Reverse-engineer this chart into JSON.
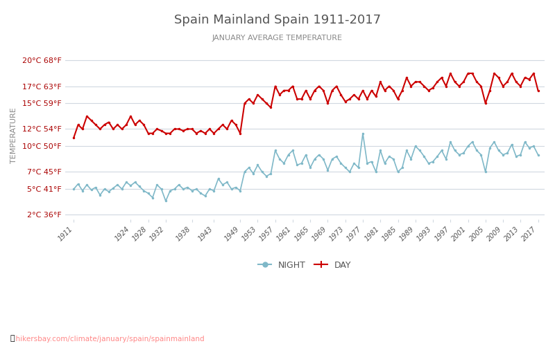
{
  "title": "Spain Mainland Spain 1911-2017",
  "subtitle": "JANUARY AVERAGE TEMPERATURE",
  "ylabel": "TEMPERATURE",
  "xlabel_url": "hikersbay.com/climate/january/spain/spainmainland",
  "years": [
    1911,
    1912,
    1913,
    1914,
    1915,
    1916,
    1917,
    1918,
    1919,
    1920,
    1921,
    1922,
    1923,
    1924,
    1925,
    1926,
    1927,
    1928,
    1929,
    1930,
    1931,
    1932,
    1933,
    1934,
    1935,
    1936,
    1937,
    1938,
    1939,
    1940,
    1941,
    1942,
    1943,
    1944,
    1945,
    1946,
    1947,
    1948,
    1949,
    1950,
    1951,
    1952,
    1953,
    1954,
    1955,
    1956,
    1957,
    1958,
    1959,
    1960,
    1961,
    1962,
    1963,
    1964,
    1965,
    1966,
    1967,
    1968,
    1969,
    1970,
    1971,
    1972,
    1973,
    1974,
    1975,
    1976,
    1977,
    1978,
    1979,
    1980,
    1981,
    1982,
    1983,
    1984,
    1985,
    1986,
    1987,
    1988,
    1989,
    1990,
    1991,
    1992,
    1993,
    1994,
    1995,
    1996,
    1997,
    1998,
    1999,
    2000,
    2001,
    2002,
    2003,
    2004,
    2005,
    2006,
    2007,
    2008,
    2009,
    2010,
    2011,
    2012,
    2013,
    2014,
    2015,
    2016,
    2017
  ],
  "night": [
    5.0,
    5.6,
    4.8,
    5.5,
    4.9,
    5.2,
    4.3,
    5.0,
    4.7,
    5.1,
    5.5,
    5.0,
    5.8,
    5.4,
    5.8,
    5.3,
    4.8,
    4.5,
    4.0,
    5.5,
    5.0,
    3.6,
    4.8,
    5.0,
    5.5,
    5.0,
    5.2,
    4.8,
    5.0,
    4.5,
    4.2,
    5.0,
    4.8,
    6.2,
    5.5,
    5.8,
    5.0,
    5.2,
    4.8,
    7.0,
    7.5,
    6.8,
    7.8,
    7.0,
    6.5,
    6.8,
    9.5,
    8.5,
    8.0,
    9.0,
    9.5,
    7.8,
    8.0,
    9.0,
    7.5,
    8.5,
    9.0,
    8.5,
    7.2,
    8.5,
    8.8,
    8.0,
    7.5,
    7.0,
    8.0,
    7.5,
    11.5,
    8.0,
    8.2,
    7.0,
    9.5,
    8.0,
    8.8,
    8.5,
    7.0,
    7.5,
    9.5,
    8.5,
    10.0,
    9.5,
    8.8,
    8.0,
    8.2,
    8.8,
    9.5,
    8.5,
    10.5,
    9.5,
    9.0,
    9.2,
    10.0,
    10.5,
    9.5,
    9.0,
    7.0,
    9.8,
    10.5,
    9.5,
    9.0,
    9.2,
    10.2,
    8.8,
    9.0,
    10.5,
    9.8,
    10.0,
    9.0
  ],
  "day": [
    11.0,
    12.5,
    12.0,
    13.5,
    13.0,
    12.5,
    12.0,
    12.5,
    12.8,
    12.0,
    12.5,
    12.0,
    12.5,
    13.5,
    12.5,
    13.0,
    12.5,
    11.5,
    11.5,
    12.0,
    11.8,
    11.5,
    11.5,
    12.0,
    12.0,
    11.8,
    12.0,
    12.0,
    11.5,
    11.8,
    11.5,
    12.0,
    11.5,
    12.0,
    12.5,
    12.0,
    13.0,
    12.5,
    11.5,
    15.0,
    15.5,
    15.0,
    16.0,
    15.5,
    15.0,
    14.5,
    17.0,
    16.0,
    16.5,
    16.5,
    17.0,
    15.5,
    15.5,
    16.5,
    15.5,
    16.5,
    17.0,
    16.5,
    15.0,
    16.5,
    17.0,
    16.0,
    15.2,
    15.5,
    16.0,
    15.5,
    16.5,
    15.5,
    16.5,
    15.8,
    17.5,
    16.5,
    17.0,
    16.5,
    15.5,
    16.5,
    18.0,
    17.0,
    17.5,
    17.5,
    17.0,
    16.5,
    16.8,
    17.5,
    18.0,
    17.0,
    18.5,
    17.5,
    17.0,
    17.5,
    18.5,
    18.5,
    17.5,
    17.0,
    15.0,
    16.5,
    18.5,
    18.0,
    17.0,
    17.5,
    18.5,
    17.5,
    17.0,
    18.0,
    17.8,
    18.5,
    16.5
  ],
  "yticks_c": [
    2,
    5,
    7,
    10,
    12,
    15,
    17,
    20
  ],
  "yticks_f": [
    36,
    41,
    45,
    50,
    54,
    59,
    63,
    68
  ],
  "xticks": [
    1911,
    1924,
    1928,
    1932,
    1938,
    1943,
    1949,
    1953,
    1957,
    1961,
    1965,
    1969,
    1973,
    1977,
    1981,
    1985,
    1989,
    1993,
    1997,
    2001,
    2005,
    2009,
    2013,
    2017
  ],
  "night_color": "#7fb8c8",
  "day_color": "#cc0000",
  "grid_color": "#d0d8e0",
  "title_color": "#555555",
  "subtitle_color": "#888888",
  "ylabel_color": "#888888",
  "tick_color": "#aa0000",
  "bg_color": "#ffffff",
  "url_color": "#ff8888",
  "legend_night_color": "#7fb8c8",
  "legend_day_color": "#cc0000"
}
